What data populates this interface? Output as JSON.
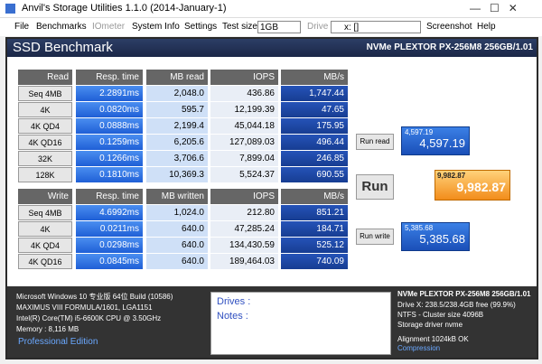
{
  "window": {
    "title": "Anvil's Storage Utilities 1.1.0 (2014-January-1)"
  },
  "menu": {
    "items": [
      "File",
      "Benchmarks",
      "IOmeter",
      "System Info",
      "Settings"
    ],
    "test_size_label": "Test size",
    "test_size": "1GB",
    "drive_label": "Drive",
    "drive": "x: []",
    "extra": [
      "Screenshot",
      "Help"
    ]
  },
  "header": {
    "title": "SSD Benchmark",
    "device": "NVMe PLEXTOR PX-256M8 256GB/1.01"
  },
  "read_table": {
    "headers": [
      "Read",
      "Resp. time",
      "MB read",
      "IOPS",
      "MB/s"
    ],
    "rows": [
      [
        "Seq 4MB",
        "2.2891ms",
        "2,048.0",
        "436.86",
        "1,747.44"
      ],
      [
        "4K",
        "0.0820ms",
        "595.7",
        "12,199.39",
        "47.65"
      ],
      [
        "4K QD4",
        "0.0888ms",
        "2,199.4",
        "45,044.18",
        "175.95"
      ],
      [
        "4K QD16",
        "0.1259ms",
        "6,205.6",
        "127,089.03",
        "496.44"
      ],
      [
        "32K",
        "0.1266ms",
        "3,706.6",
        "7,899.04",
        "246.85"
      ],
      [
        "128K",
        "0.1810ms",
        "10,369.3",
        "5,524.37",
        "690.55"
      ]
    ]
  },
  "write_table": {
    "headers": [
      "Write",
      "Resp. time",
      "MB written",
      "IOPS",
      "MB/s"
    ],
    "rows": [
      [
        "Seq 4MB",
        "4.6992ms",
        "1,024.0",
        "212.80",
        "851.21"
      ],
      [
        "4K",
        "0.0211ms",
        "640.0",
        "47,285.24",
        "184.71"
      ],
      [
        "4K QD4",
        "0.0298ms",
        "640.0",
        "134,430.59",
        "525.12"
      ],
      [
        "4K QD16",
        "0.0845ms",
        "640.0",
        "189,464.03",
        "740.09"
      ]
    ]
  },
  "scores": {
    "read_button": "Run read",
    "read_small": "4,597.19",
    "read": "4,597.19",
    "run_button": "Run",
    "total_small": "9,982.87",
    "total": "9,982.87",
    "write_button": "Run write",
    "write_small": "5,385.68",
    "write": "5,385.68"
  },
  "system": {
    "lines": [
      "Microsoft Windows 10 专业版 64位 Build (10586)",
      "MAXIMUS VIII FORMULA/1601, LGA1151",
      "Intel(R) Core(TM) i5-6600K CPU @ 3.50GHz",
      "Memory : 8,116 MB"
    ],
    "edition": "Professional Edition"
  },
  "notes": {
    "drives": "Drives :",
    "notes": "Notes :"
  },
  "drive_info": {
    "lines": [
      "NVMe PLEXTOR PX-256M8 256GB/1.01",
      "Drive X: 238.5/238.4GB free (99.9%)",
      "NTFS - Cluster size 4096B",
      "Storage driver  nvme",
      "Alignment 1024kB OK",
      "Compression"
    ]
  }
}
